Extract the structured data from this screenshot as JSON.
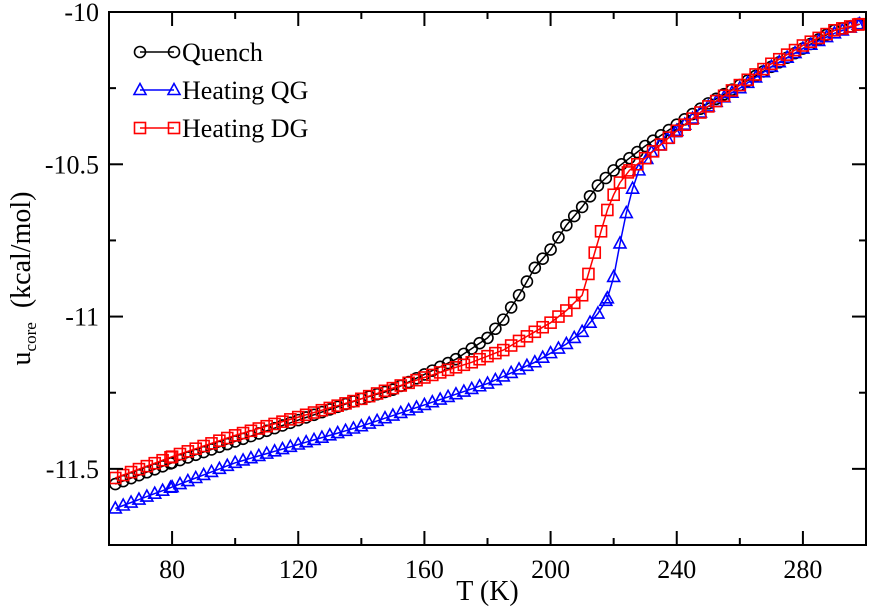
{
  "chart_data": {
    "type": "line",
    "title": "",
    "xlabel": "T  (K)",
    "ylabel_main": "u",
    "ylabel_sub": "core",
    "ylabel_units": "(kcal/mol)",
    "xlim": [
      60,
      300
    ],
    "ylim": [
      -11.75,
      -10
    ],
    "xticks": [
      80,
      120,
      160,
      200,
      240,
      280
    ],
    "xtick_labels": [
      "80",
      "120",
      "160",
      "200",
      "240",
      "280"
    ],
    "yticks": [
      -11.5,
      -11,
      -10.5,
      -10
    ],
    "ytick_labels": [
      "-11.5",
      "-11",
      "-10.5",
      "-10"
    ],
    "legend_position": "top-left",
    "series": [
      {
        "name": "Quench",
        "color": "#000000",
        "marker": "circle",
        "x": [
          62,
          80,
          100,
          120,
          140,
          150,
          160,
          170,
          180,
          185,
          190,
          195,
          200,
          205,
          210,
          215,
          220,
          225,
          230,
          240,
          250,
          260,
          270,
          280,
          290,
          298
        ],
        "y": [
          -11.55,
          -11.48,
          -11.41,
          -11.34,
          -11.27,
          -11.24,
          -11.19,
          -11.14,
          -11.07,
          -11.01,
          -10.93,
          -10.84,
          -10.78,
          -10.7,
          -10.64,
          -10.57,
          -10.52,
          -10.48,
          -10.44,
          -10.37,
          -10.3,
          -10.24,
          -10.18,
          -10.12,
          -10.06,
          -10.04
        ]
      },
      {
        "name": "Heating QG",
        "color": "#0000ff",
        "marker": "triangle",
        "x": [
          62,
          80,
          100,
          120,
          140,
          160,
          180,
          195,
          205,
          210,
          215,
          218,
          220,
          222,
          224,
          226,
          228,
          232,
          240,
          250,
          260,
          270,
          280,
          290,
          298
        ],
        "y": [
          -11.63,
          -11.56,
          -11.48,
          -11.42,
          -11.36,
          -11.29,
          -11.22,
          -11.15,
          -11.09,
          -11.05,
          -10.99,
          -10.94,
          -10.87,
          -10.76,
          -10.66,
          -10.58,
          -10.52,
          -10.46,
          -10.39,
          -10.31,
          -10.25,
          -10.18,
          -10.12,
          -10.07,
          -10.04
        ]
      },
      {
        "name": "Heating DG",
        "color": "#ff0000",
        "marker": "square",
        "x": [
          62,
          80,
          100,
          120,
          140,
          160,
          175,
          185,
          195,
          200,
          205,
          210,
          212,
          214,
          216,
          218,
          220,
          222,
          225,
          230,
          240,
          250,
          260,
          270,
          280,
          290,
          298
        ],
        "y": [
          -11.53,
          -11.46,
          -11.39,
          -11.33,
          -11.27,
          -11.2,
          -11.15,
          -11.11,
          -11.05,
          -11.02,
          -10.98,
          -10.93,
          -10.86,
          -10.79,
          -10.72,
          -10.65,
          -10.6,
          -10.56,
          -10.52,
          -10.48,
          -10.39,
          -10.31,
          -10.24,
          -10.17,
          -10.11,
          -10.06,
          -10.04
        ]
      }
    ]
  }
}
